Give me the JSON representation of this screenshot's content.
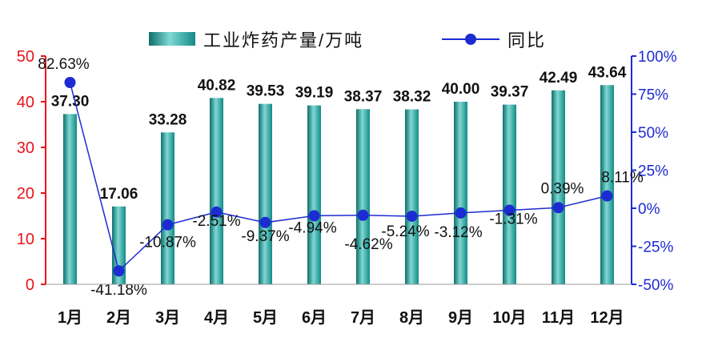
{
  "chart_data": {
    "type": "bar",
    "categories": [
      "1月",
      "2月",
      "3月",
      "4月",
      "5月",
      "6月",
      "7月",
      "8月",
      "9月",
      "10月",
      "11月",
      "12月"
    ],
    "series": [
      {
        "name": "工业炸药产量/万吨",
        "kind": "bar",
        "axis": "left",
        "values": [
          37.3,
          17.06,
          33.28,
          40.82,
          39.53,
          39.19,
          38.37,
          38.32,
          40.0,
          39.37,
          42.49,
          43.64
        ],
        "labels": [
          "37.30",
          "17.06",
          "33.28",
          "40.82",
          "39.53",
          "39.19",
          "38.37",
          "38.32",
          "40.00",
          "39.37",
          "42.49",
          "43.64"
        ]
      },
      {
        "name": "同比",
        "kind": "line",
        "axis": "right",
        "values": [
          82.63,
          -41.18,
          -10.87,
          -2.51,
          -9.37,
          -4.94,
          -4.62,
          -5.24,
          -3.12,
          -1.31,
          0.39,
          8.11
        ],
        "labels": [
          "82.63%",
          "-41.18%",
          "-10.87%",
          "-2.51%",
          "-9.37%",
          "-4.94%",
          "-4.62%",
          "-5.24%",
          "-3.12%",
          "-1.31%",
          "0.39%",
          "8.11%"
        ]
      }
    ],
    "y_left": {
      "range": [
        0,
        50
      ],
      "ticks": [
        "0",
        "10",
        "20",
        "30",
        "40",
        "50"
      ]
    },
    "y_right": {
      "range": [
        -50,
        100
      ],
      "ticks": [
        "-50%",
        "-25%",
        "0%",
        "25%",
        "50%",
        "75%",
        "100%"
      ]
    },
    "grid": false,
    "legend": "top",
    "colors": {
      "bar": "#1fa7a3",
      "bar_dark": "#0e6e6b",
      "bar_light": "#7fd8d3",
      "line": "#1d2bd3",
      "left_axis": "#e8141b",
      "right_axis": "#1d2bd3"
    }
  }
}
